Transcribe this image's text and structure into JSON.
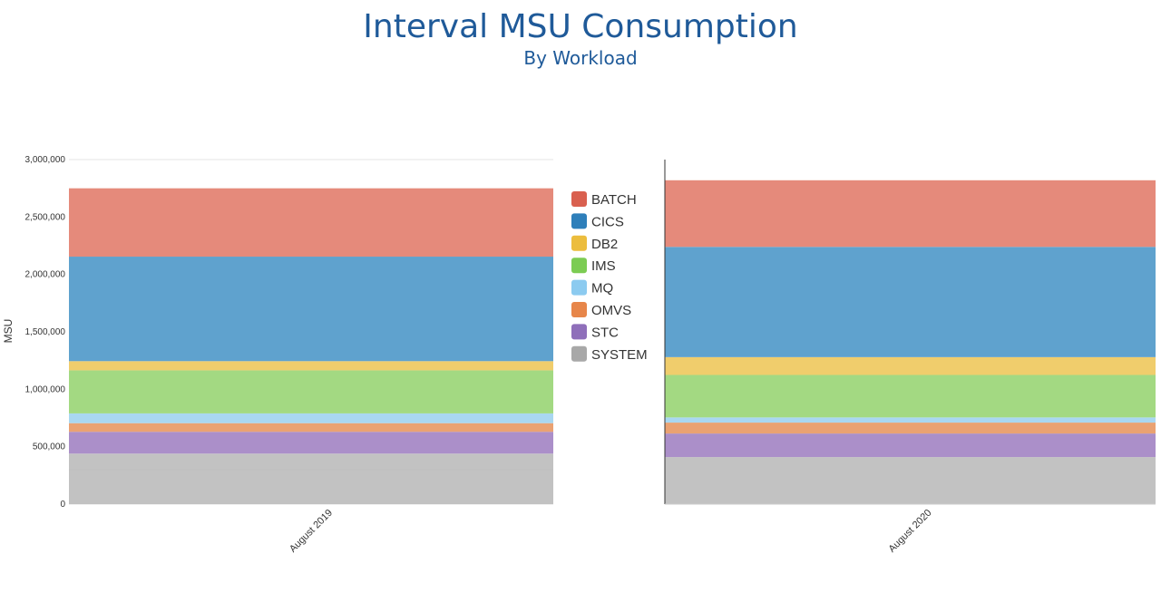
{
  "title": "Interval MSU Consumption",
  "subtitle": "By Workload",
  "chart_data": {
    "type": "bar",
    "stacked": true,
    "title": "Interval MSU Consumption",
    "subtitle": "By Workload",
    "ylabel": "MSU",
    "ylim": [
      0,
      3000000
    ],
    "yticks": [
      0,
      500000,
      1000000,
      1500000,
      2000000,
      2500000,
      3000000
    ],
    "ytick_labels": [
      "0",
      "500,000",
      "1,000,000",
      "1,500,000",
      "2,000,000",
      "2,500,000",
      "3,000,000"
    ],
    "categories": [
      "August 2019",
      "August 2020"
    ],
    "grid": true,
    "legend_position": "center",
    "series": [
      {
        "name": "SYSTEM",
        "color": "#c2c2c2",
        "values": [
          440000,
          410000
        ]
      },
      {
        "name": "STC",
        "color": "#ab8fc9",
        "values": [
          190000,
          205000
        ]
      },
      {
        "name": "OMVS",
        "color": "#eaa272",
        "values": [
          75000,
          95000
        ]
      },
      {
        "name": "MQ",
        "color": "#a9d7f1",
        "values": [
          85000,
          45000
        ]
      },
      {
        "name": "IMS",
        "color": "#a3d982",
        "values": [
          375000,
          370000
        ]
      },
      {
        "name": "DB2",
        "color": "#f0cd6c",
        "values": [
          80000,
          155000
        ]
      },
      {
        "name": "CICS",
        "color": "#5fa2ce",
        "values": [
          910000,
          960000
        ]
      },
      {
        "name": "BATCH",
        "color": "#e58a7b",
        "values": [
          595000,
          580000
        ]
      }
    ],
    "legend": [
      {
        "name": "BATCH",
        "color": "#d9604f"
      },
      {
        "name": "CICS",
        "color": "#2e7fba"
      },
      {
        "name": "DB2",
        "color": "#ecbd3d"
      },
      {
        "name": "IMS",
        "color": "#7ccc53"
      },
      {
        "name": "MQ",
        "color": "#8ccbf0"
      },
      {
        "name": "OMVS",
        "color": "#e7864a"
      },
      {
        "name": "STC",
        "color": "#8f6fba"
      },
      {
        "name": "SYSTEM",
        "color": "#a8a8a8"
      }
    ]
  }
}
